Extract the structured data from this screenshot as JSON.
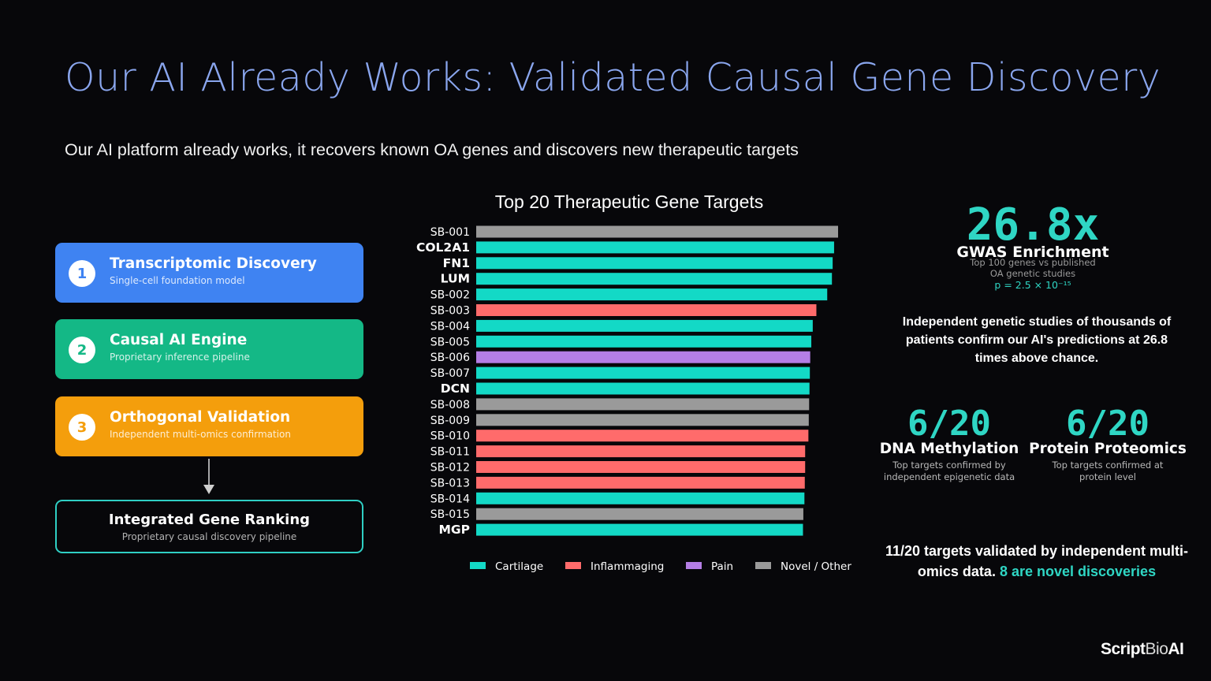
{
  "title": "Our AI Already Works: Validated Causal Gene Discovery",
  "subtitle": "Our AI platform already works, it recovers known OA genes and discovers new therapeutic targets",
  "pipeline": {
    "steps": [
      {
        "number": "1",
        "title": "Transcriptomic Discovery",
        "description": "Single-cell foundation model",
        "color": "#3f83f2"
      },
      {
        "number": "2",
        "title": "Causal AI Engine",
        "description": "Proprietary inference pipeline",
        "color": "#14b886"
      },
      {
        "number": "3",
        "title": "Orthogonal Validation",
        "description": "Independent multi-omics confirmation",
        "color": "#f49e0c"
      }
    ],
    "result": {
      "title": "Integrated Gene Ranking",
      "description": "Proprietary causal discovery pipeline"
    }
  },
  "chart_data": {
    "type": "bar",
    "orientation": "horizontal",
    "title": "Top 20 Therapeutic Gene Targets",
    "xlabel": "",
    "ylabel": "",
    "grid": false,
    "legend_position": "bottom",
    "categories": [
      "SB-001",
      "COL2A1",
      "FN1",
      "LUM",
      "SB-002",
      "SB-003",
      "SB-004",
      "SB-005",
      "SB-006",
      "SB-007",
      "DCN",
      "SB-008",
      "SB-009",
      "SB-010",
      "SB-011",
      "SB-012",
      "SB-013",
      "SB-014",
      "SB-015",
      "MGP"
    ],
    "bold_categories": [
      "COL2A1",
      "FN1",
      "LUM",
      "DCN",
      "MGP"
    ],
    "values": [
      1.0,
      0.989,
      0.985,
      0.983,
      0.97,
      0.94,
      0.93,
      0.926,
      0.923,
      0.922,
      0.921,
      0.92,
      0.919,
      0.918,
      0.909,
      0.909,
      0.908,
      0.907,
      0.904,
      0.903
    ],
    "groups": [
      "Novel / Other",
      "Cartilage",
      "Cartilage",
      "Cartilage",
      "Cartilage",
      "Inflammaging",
      "Cartilage",
      "Cartilage",
      "Pain",
      "Cartilage",
      "Cartilage",
      "Novel / Other",
      "Novel / Other",
      "Inflammaging",
      "Inflammaging",
      "Inflammaging",
      "Inflammaging",
      "Cartilage",
      "Novel / Other",
      "Cartilage"
    ],
    "legend": [
      {
        "name": "Cartilage",
        "color": "#13d9c6"
      },
      {
        "name": "Inflammaging",
        "color": "#ff6b6b"
      },
      {
        "name": "Pain",
        "color": "#b47ee5"
      },
      {
        "name": "Novel / Other",
        "color": "#9a9a9a"
      }
    ]
  },
  "stats": {
    "gwas": {
      "value": "26.8x",
      "label": "GWAS Enrichment",
      "description_line1": "Top 100 genes vs published",
      "description_line2": "OA genetic studies",
      "pvalue": "p = 2.5 × 10⁻¹⁵",
      "explanation": "Independent genetic studies of thousands of patients confirm our AI's predictions at 26.8 times above chance."
    },
    "methylation": {
      "value": "6/20",
      "label": "DNA Methylation",
      "description_line1": "Top targets confirmed by",
      "description_line2": "independent epigenetic data"
    },
    "proteomics": {
      "value": "6/20",
      "label": "Protein Proteomics",
      "description_line1": "Top targets confirmed at",
      "description_line2": "protein level"
    },
    "summary_text": "11/20 targets validated by independent multi-omics data.",
    "summary_highlight": "8 are novel discoveries"
  },
  "logo": {
    "part1": "Script",
    "part2": "Bio",
    "part3": "AI"
  }
}
